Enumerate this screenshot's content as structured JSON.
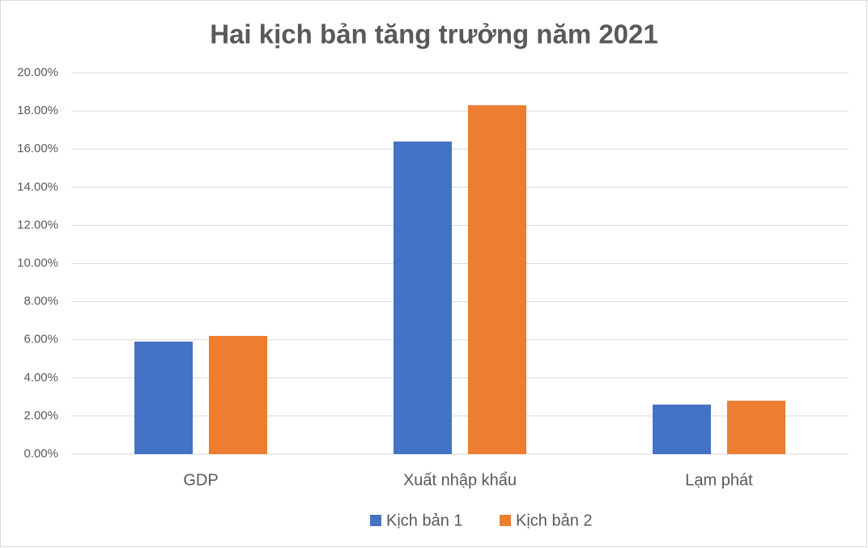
{
  "chart_data": {
    "type": "bar",
    "title": "Hai kịch bản tăng trưởng năm 2021",
    "categories": [
      "GDP",
      "Xuất nhập khẩu",
      "Lạm phát"
    ],
    "series": [
      {
        "name": "Kịch bản 1",
        "color": "#4472c4",
        "values": [
          5.9,
          16.4,
          2.6
        ]
      },
      {
        "name": "Kịch bản 2",
        "color": "#ed7d31",
        "values": [
          6.2,
          18.3,
          2.8
        ]
      }
    ],
    "ylim": [
      0,
      20
    ],
    "yticks": [
      {
        "value": 0,
        "label": "0.00%"
      },
      {
        "value": 2,
        "label": "2.00%"
      },
      {
        "value": 4,
        "label": "4.00%"
      },
      {
        "value": 6,
        "label": "6.00%"
      },
      {
        "value": 8,
        "label": "8.00%"
      },
      {
        "value": 10,
        "label": "10.00%"
      },
      {
        "value": 12,
        "label": "12.00%"
      },
      {
        "value": 14,
        "label": "14.00%"
      },
      {
        "value": 16,
        "label": "16.00%"
      },
      {
        "value": 18,
        "label": "18.00%"
      },
      {
        "value": 20,
        "label": "20.00%"
      }
    ],
    "grid": true,
    "legend": "bottom"
  }
}
